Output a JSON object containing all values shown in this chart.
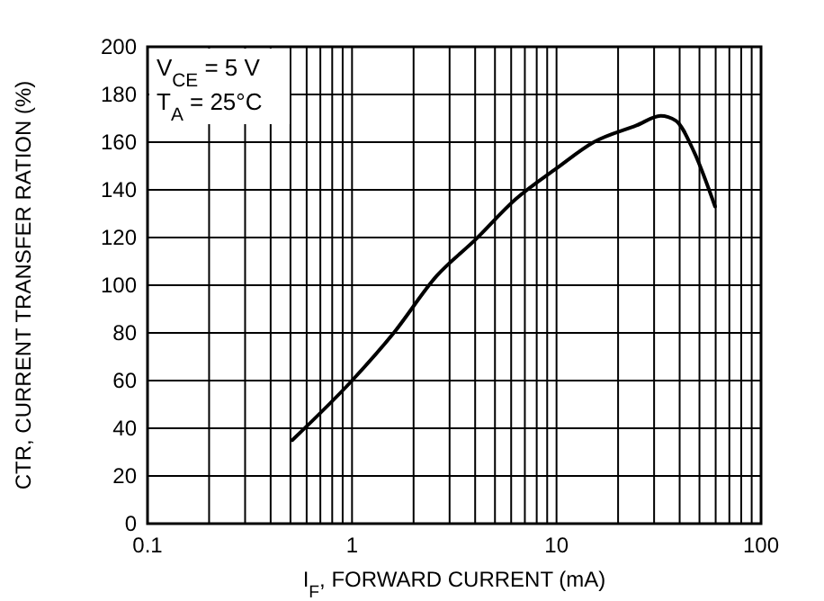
{
  "chart_data": {
    "type": "line",
    "xlabel": "I$_{F}$, FORWARD CURRENT (mA)",
    "ylabel": "CTR, CURRENT TRANSFER RATION (%)",
    "log": "x",
    "x": [
      0.51,
      1,
      1.6,
      2.6,
      4,
      6.3,
      10,
      15.2,
      24.6,
      32.3,
      38.3,
      47,
      59.6
    ],
    "series": [
      {
        "color": "#000000",
        "values": [
          35,
          60,
          80,
          104,
          119,
          136,
          149,
          160,
          167,
          171,
          169,
          156,
          133
        ]
      }
    ],
    "xlim": [
      0.1,
      100
    ],
    "xticks": [
      0.1,
      {
        "value": 0.2,
        "label": null
      },
      {
        "value": 0.3,
        "label": null
      },
      {
        "value": 0.4,
        "label": null
      },
      {
        "value": 0.5,
        "label": null
      },
      {
        "value": 0.6,
        "label": null
      },
      {
        "value": 0.7,
        "label": null
      },
      {
        "value": 0.8,
        "label": null
      },
      {
        "value": 0.9,
        "label": null
      },
      1,
      {
        "value": 2,
        "label": null
      },
      {
        "value": 3,
        "label": null
      },
      {
        "value": 4,
        "label": null
      },
      {
        "value": 5,
        "label": null
      },
      {
        "value": 6,
        "label": null
      },
      {
        "value": 7,
        "label": null
      },
      {
        "value": 8,
        "label": null
      },
      {
        "value": 9,
        "label": null
      },
      10,
      {
        "value": 20,
        "label": null
      },
      {
        "value": 30,
        "label": null
      },
      {
        "value": 40,
        "label": null
      },
      {
        "value": 50,
        "label": null
      },
      {
        "value": 60,
        "label": null
      },
      {
        "value": 70,
        "label": null
      },
      {
        "value": 80,
        "label": null
      },
      {
        "value": 90,
        "label": null
      },
      100
    ],
    "ylim": [
      0,
      200
    ],
    "yticks": [
      0,
      20,
      40,
      60,
      80,
      100,
      120,
      140,
      160,
      180,
      200
    ],
    "grid": true,
    "marker": "none",
    "line_style": "solid",
    "annotations": [
      "V$_{CE}$ = 5 V",
      "T$_{A}$ = 25°C"
    ]
  }
}
